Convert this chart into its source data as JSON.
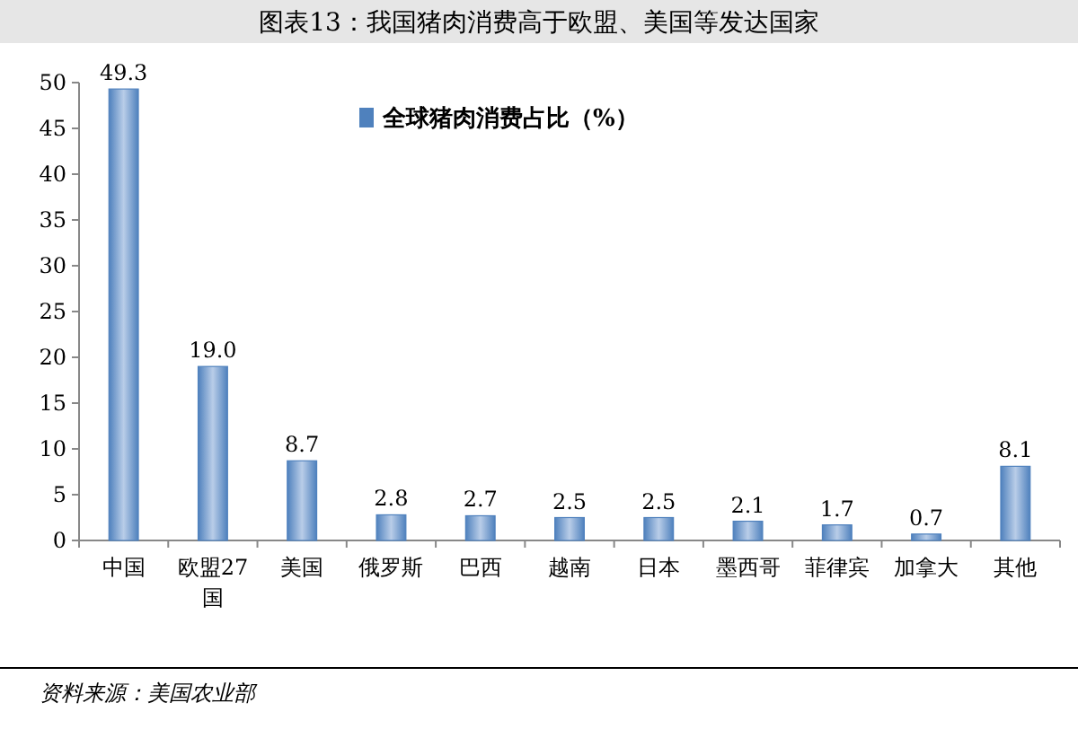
{
  "chart_data": {
    "type": "bar",
    "title": "图表13：我国猪肉消费高于欧盟、美国等发达国家",
    "categories": [
      "中国",
      "欧盟27国",
      "美国",
      "俄罗斯",
      "巴西",
      "越南",
      "日本",
      "墨西哥",
      "菲律宾",
      "加拿大",
      "其他"
    ],
    "series": [
      {
        "name": "全球猪肉消费占比（%）",
        "color": "#4f81bd",
        "values": [
          49.3,
          19.0,
          8.7,
          2.8,
          2.7,
          2.5,
          2.5,
          2.1,
          1.7,
          0.7,
          8.1
        ],
        "value_labels": [
          "49.3",
          "19.0",
          "8.7",
          "2.8",
          "2.7",
          "2.5",
          "2.5",
          "2.1",
          "1.7",
          "0.7",
          "8.1"
        ]
      }
    ],
    "ylim": [
      0,
      50
    ],
    "yticks": [
      0,
      5,
      10,
      15,
      20,
      25,
      30,
      35,
      40,
      45,
      50
    ],
    "legend": "top",
    "annotations": [
      "资料来源：美国农业部"
    ]
  }
}
